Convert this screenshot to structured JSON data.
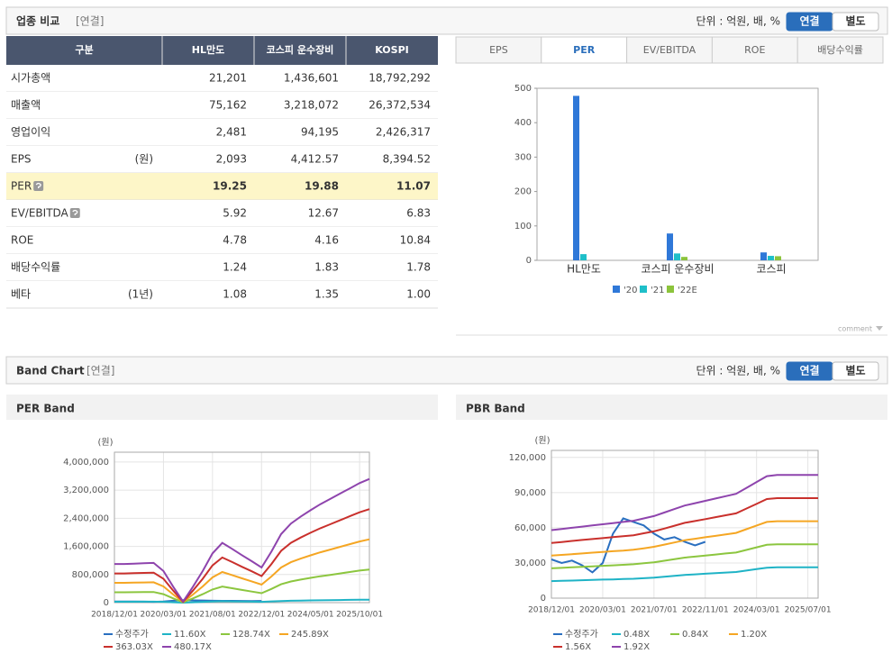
{
  "header": {
    "title": "업종 비교",
    "badge": "[연결]",
    "unit": "단위 : 억원, 배, %",
    "toggle": [
      "연결",
      "별도"
    ]
  },
  "table": {
    "headers": [
      "구분",
      "HL만도",
      "코스피 운수장비",
      "KOSPI"
    ],
    "rows": [
      {
        "label": "시가총액",
        "values": [
          "21,201",
          "1,436,601",
          "18,792,292"
        ]
      },
      {
        "label": "매출액",
        "values": [
          "75,162",
          "3,218,072",
          "26,372,534"
        ]
      },
      {
        "label": "영업이익",
        "values": [
          "2,481",
          "94,195",
          "2,426,317"
        ]
      },
      {
        "label": "EPS",
        "note": "(원)",
        "values": [
          "2,093",
          "4,412.57",
          "8,394.52"
        ]
      },
      {
        "label": "PER",
        "help": true,
        "highlighted": true,
        "values": [
          "19.25",
          "19.88",
          "11.07"
        ]
      },
      {
        "label": "EV/EBITDA",
        "help": true,
        "values": [
          "5.92",
          "12.67",
          "6.83"
        ]
      },
      {
        "label": "ROE",
        "values": [
          "4.78",
          "4.16",
          "10.84"
        ]
      },
      {
        "label": "배당수익률",
        "values": [
          "1.24",
          "1.83",
          "1.78"
        ]
      },
      {
        "label": "베타",
        "note": "(1년)",
        "values": [
          "1.08",
          "1.35",
          "1.00"
        ]
      }
    ]
  },
  "tabs": {
    "items": [
      "EPS",
      "PER",
      "EV/EBITDA",
      "ROE",
      "배당수익률"
    ],
    "active": 1
  },
  "comment": "comment",
  "band_header": {
    "title": "Band Chart",
    "badge": "[연결]",
    "unit": "단위 : 억원, 배, %",
    "toggle": [
      "연결",
      "별도"
    ]
  },
  "chart_data": [
    {
      "type": "bar",
      "categories": [
        "HL만도",
        "코스피 운수장비",
        "코스피"
      ],
      "ylim": [
        0,
        500
      ],
      "yticks": [
        0,
        100,
        200,
        300,
        400,
        500
      ],
      "grid": false,
      "series": [
        {
          "name": "'20",
          "color": "#2f78d8",
          "values": [
            478,
            78,
            23
          ]
        },
        {
          "name": "'21",
          "color": "#1fbfc9",
          "values": [
            18,
            20,
            13
          ]
        },
        {
          "name": "'22E",
          "color": "#8cc43c",
          "values": [
            null,
            10,
            12
          ]
        }
      ]
    },
    {
      "type": "line",
      "title": "PER Band",
      "y_label": "(원)",
      "grid": true,
      "categories": [
        "2018/12/01",
        null,
        null,
        null,
        null,
        "2020/03/01",
        null,
        null,
        null,
        null,
        "2021/08/01",
        null,
        null,
        null,
        null,
        "2022/12/01",
        null,
        null,
        null,
        null,
        "2024/05/01",
        null,
        null,
        null,
        null,
        "2025/10/01",
        null
      ],
      "ylim": [
        0,
        4280000
      ],
      "yticks": [
        {
          "value": 0,
          "label": "0"
        },
        {
          "value": 800000,
          "label": "800,000"
        },
        {
          "value": 1600000,
          "label": "1,600,000"
        },
        {
          "value": 2400000,
          "label": "2,400,000"
        },
        {
          "value": 3200000,
          "label": "3,200,000"
        },
        {
          "value": 4000000,
          "label": "4,000,000"
        }
      ],
      "series": [
        {
          "name": "수정주가",
          "color": "#2a6fc0",
          "values": [
            33000,
            30000,
            32000,
            28000,
            22000,
            30000,
            55000,
            68000,
            65000,
            62000,
            55000,
            50000,
            52000,
            48000,
            45000,
            48000,
            null,
            null,
            null,
            null,
            null,
            null,
            null,
            null,
            null,
            null,
            null
          ]
        },
        {
          "name": "11.60X",
          "color": "#1fb3c6",
          "values": [
            26600,
            26600,
            26900,
            27100,
            27300,
            21800,
            10900,
            700,
            10900,
            21800,
            33900,
            41100,
            37000,
            32700,
            28600,
            24200,
            35100,
            47200,
            54400,
            59300,
            63600,
            67800,
            71400,
            75000,
            78600,
            82200,
            85200
          ]
        },
        {
          "name": "128.74X",
          "color": "#8cc63f",
          "values": [
            294800,
            294800,
            297500,
            300200,
            302800,
            241200,
            120600,
            8000,
            120600,
            241200,
            375200,
            455600,
            410000,
            361800,
            316200,
            268000,
            388600,
            522600,
            603000,
            656600,
            704800,
            750400,
            790600,
            830800,
            871000,
            911200,
            943400
          ]
        },
        {
          "name": "245.89X",
          "color": "#f5a623",
          "values": [
            563200,
            563200,
            568300,
            573400,
            578600,
            460800,
            230400,
            15400,
            230400,
            460800,
            716800,
            870400,
            783400,
            691200,
            604200,
            512000,
            742400,
            998400,
            1152000,
            1254400,
            1346600,
            1433600,
            1510400,
            1587200,
            1664000,
            1740800,
            1802200
          ]
        },
        {
          "name": "363.03X",
          "color": "#c9302c",
          "values": [
            831600,
            831600,
            839200,
            846700,
            854300,
            680400,
            340200,
            22700,
            340200,
            680400,
            1058400,
            1285200,
            1156700,
            1020600,
            892100,
            756000,
            1096200,
            1474200,
            1701000,
            1852200,
            1988300,
            2116800,
            2230200,
            2343600,
            2457000,
            2570400,
            2661100
          ]
        },
        {
          "name": "480.17X",
          "color": "#8e44ad",
          "values": [
            1100000,
            1100000,
            1110000,
            1120000,
            1130000,
            900000,
            450000,
            30000,
            450000,
            900000,
            1400000,
            1700000,
            1530000,
            1350000,
            1180000,
            1000000,
            1450000,
            1950000,
            2250000,
            2450000,
            2630000,
            2800000,
            2950000,
            3100000,
            3250000,
            3400000,
            3520000
          ]
        }
      ]
    },
    {
      "type": "line",
      "title": "PBR Band",
      "y_label": "(원)",
      "grid": true,
      "categories": [
        "2018/12/01",
        null,
        null,
        null,
        null,
        "2020/03/01",
        null,
        null,
        null,
        null,
        "2021/07/01",
        null,
        null,
        null,
        null,
        "2022/11/01",
        null,
        null,
        null,
        null,
        "2024/03/01",
        null,
        null,
        null,
        null,
        "2025/07/01",
        null
      ],
      "ylim": [
        0,
        126000
      ],
      "yticks": [
        0,
        {
          "value": 30000,
          "label": "30,000"
        },
        {
          "value": 60000,
          "label": "60,000"
        },
        {
          "value": 90000,
          "label": "90,000"
        },
        {
          "value": 120000,
          "label": "120,000"
        }
      ],
      "series": [
        {
          "name": "수정주가",
          "color": "#2a6fc0",
          "values": [
            33000,
            30000,
            32000,
            28000,
            22000,
            30000,
            55000,
            68000,
            65000,
            62000,
            55000,
            50000,
            52000,
            48000,
            45000,
            48000,
            null,
            null,
            null,
            null,
            null,
            null,
            null,
            null,
            null,
            null,
            null
          ]
        },
        {
          "name": "0.48X",
          "color": "#1fb3c6",
          "values": [
            14500,
            14800,
            15000,
            15300,
            15500,
            15800,
            16000,
            16300,
            16500,
            17000,
            17500,
            18300,
            19000,
            19800,
            20300,
            20800,
            21300,
            21800,
            22300,
            23500,
            24800,
            26000,
            26300,
            26300,
            26300,
            26300,
            26300
          ]
        },
        {
          "name": "0.84X",
          "color": "#8cc63f",
          "values": [
            25400,
            25800,
            26300,
            26700,
            27100,
            27600,
            28000,
            28400,
            28900,
            29800,
            30600,
            31900,
            33300,
            34600,
            35400,
            36300,
            37200,
            38100,
            38900,
            41100,
            43300,
            45500,
            45900,
            45900,
            45900,
            45900,
            45900
          ]
        },
        {
          "name": "1.20X",
          "color": "#f5a623",
          "values": [
            36300,
            36900,
            37500,
            38100,
            38800,
            39400,
            40000,
            40600,
            41300,
            42500,
            43800,
            45600,
            47500,
            49400,
            50600,
            51900,
            53100,
            54400,
            55600,
            58800,
            61900,
            65000,
            65600,
            65600,
            65600,
            65600,
            65600
          ]
        },
        {
          "name": "1.56X",
          "color": "#c9302c",
          "values": [
            47100,
            47900,
            48800,
            49600,
            50400,
            51200,
            52000,
            52800,
            53600,
            55300,
            56900,
            59300,
            61800,
            64200,
            65800,
            67400,
            69100,
            70700,
            72300,
            76400,
            80400,
            84500,
            85300,
            85300,
            85300,
            85300,
            85300
          ]
        },
        {
          "name": "1.92X",
          "color": "#8e44ad",
          "values": [
            58000,
            59000,
            60000,
            61000,
            62000,
            63000,
            64000,
            65000,
            66000,
            68000,
            70000,
            73000,
            76000,
            79000,
            81000,
            83000,
            85000,
            87000,
            89000,
            94000,
            99000,
            104000,
            105000,
            105000,
            105000,
            105000,
            105000
          ]
        }
      ]
    }
  ]
}
